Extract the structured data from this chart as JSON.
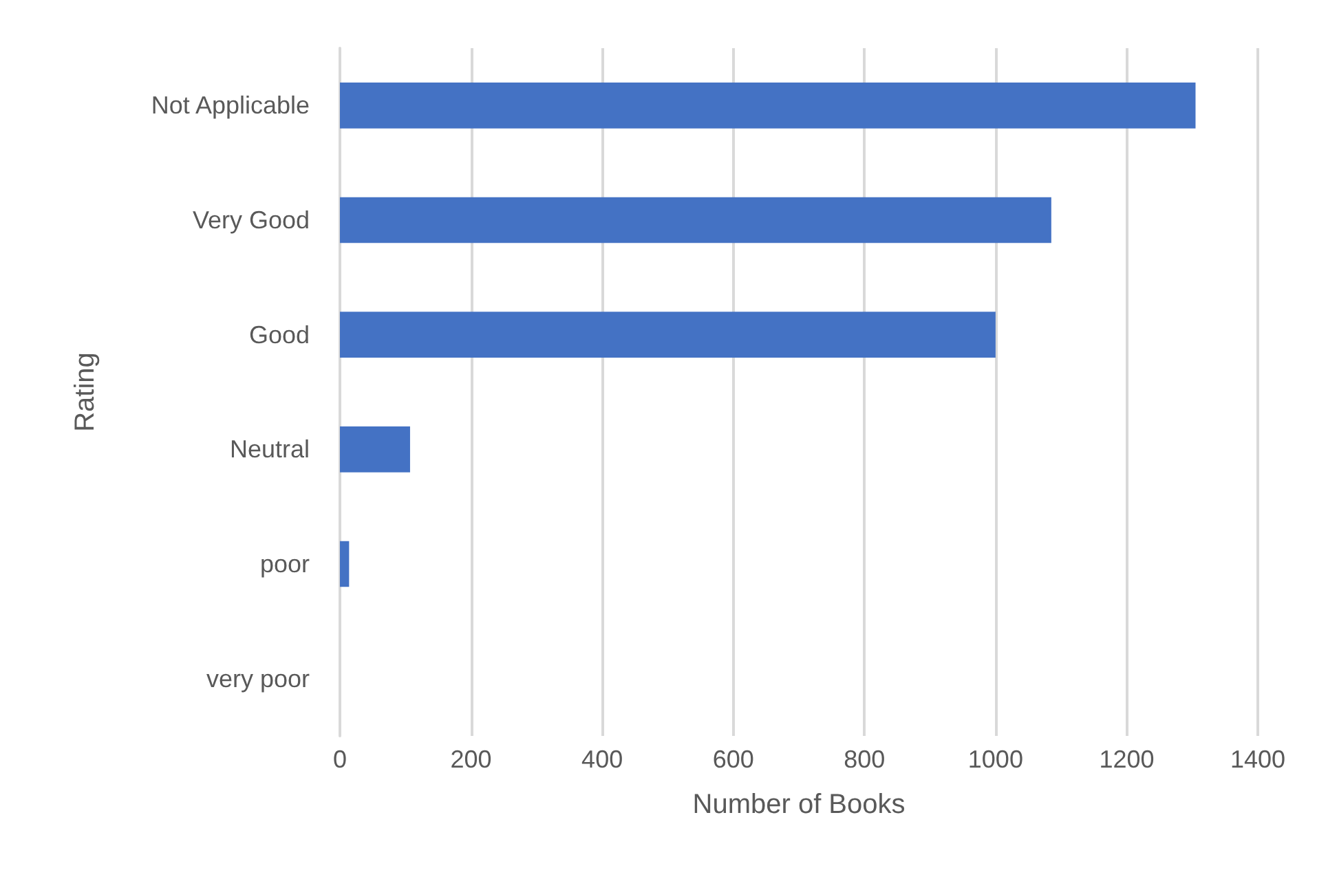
{
  "chart_data": {
    "type": "bar",
    "orientation": "horizontal",
    "xlabel": "Number of Books",
    "ylabel": "Rating",
    "categories": [
      "Not Applicable",
      "Very Good",
      "Good",
      "Neutral",
      "poor",
      "very poor"
    ],
    "values": [
      1305,
      1085,
      1000,
      107,
      14,
      0
    ],
    "color": "#4472c4",
    "xlim": [
      0,
      1400
    ],
    "xticks": [
      0,
      200,
      400,
      600,
      800,
      1000,
      1200,
      1400
    ],
    "grid": "x"
  }
}
